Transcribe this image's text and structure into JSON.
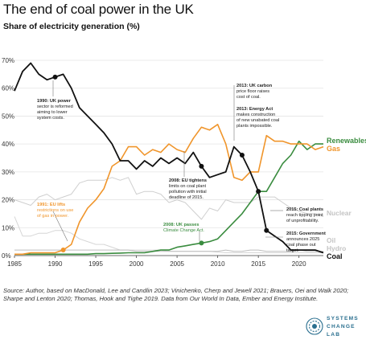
{
  "title": "The end of coal power in the UK",
  "subtitle": "Share of electricity generation (%)",
  "source": "Source: Author, based on MacDonald, Lee and Candlin 2023; Vinichenko, Cherp and Jewell 2021; Brauers, Oei and Walk 2020; Sharpe and Lenton 2020; Thomas, Hook and Tighe 2019. Data from Our World In Data, Ember and Energy Institute.",
  "logo": {
    "line1": "SYSTEMS",
    "line2": "CHANGE",
    "line3": "LAB",
    "color": "#2a6f8f"
  },
  "colors": {
    "coal": "#111111",
    "gas": "#f0952b",
    "renewables": "#3a8c3f",
    "nuclear": "#cfcfcf",
    "oil": "#d6d6d6",
    "hydro": "#bdbdbd"
  },
  "chart_data": {
    "type": "line",
    "xlim": [
      1985,
      2023
    ],
    "ylim": [
      0,
      70
    ],
    "xticks": [
      "1985",
      "1990",
      "1995",
      "2000",
      "2005",
      "2010",
      "2015",
      "2020"
    ],
    "yticks": [
      "0%",
      "10%",
      "20%",
      "30%",
      "40%",
      "50%",
      "60%",
      "70%"
    ],
    "x": [
      1985,
      1986,
      1987,
      1988,
      1989,
      1990,
      1991,
      1992,
      1993,
      1994,
      1995,
      1996,
      1997,
      1998,
      1999,
      2000,
      2001,
      2002,
      2003,
      2004,
      2005,
      2006,
      2007,
      2008,
      2009,
      2010,
      2011,
      2012,
      2013,
      2014,
      2015,
      2016,
      2017,
      2018,
      2019,
      2020,
      2021,
      2022,
      2023
    ],
    "series": [
      {
        "name": "Coal",
        "color": "#111111",
        "values": [
          59,
          66,
          69,
          65,
          63,
          64,
          65,
          60,
          53,
          50,
          47,
          44,
          40,
          34,
          34,
          31,
          34,
          32,
          35,
          33,
          35,
          33,
          37,
          32,
          28,
          29,
          30,
          39,
          36,
          30,
          23,
          9,
          7,
          5,
          2,
          2,
          2,
          2,
          1
        ]
      },
      {
        "name": "Gas",
        "color": "#f0952b",
        "values": [
          0.5,
          0.5,
          1,
          1,
          1,
          1,
          2,
          4,
          12,
          17,
          20,
          24,
          32,
          34,
          39,
          39,
          36,
          38,
          37,
          40,
          38,
          37,
          42,
          46,
          45,
          47,
          40,
          28,
          27,
          30,
          30,
          43,
          41,
          41,
          40,
          40,
          40,
          38,
          39
        ]
      },
      {
        "name": "Renewables",
        "color": "#3a8c3f",
        "values": [
          0.5,
          0.5,
          0.5,
          0.5,
          0.5,
          0.5,
          0.5,
          0.5,
          0.5,
          0.5,
          0.7,
          0.7,
          0.8,
          0.9,
          1,
          1,
          1,
          1.5,
          2,
          2,
          3,
          3.5,
          4,
          4.5,
          5,
          6,
          9,
          12,
          15,
          19,
          23,
          23,
          28,
          33,
          36,
          41,
          38,
          40,
          40
        ]
      },
      {
        "name": "Nuclear",
        "color": "#cfcfcf",
        "values": [
          20,
          19,
          18,
          21,
          22,
          20,
          21,
          22,
          26,
          27,
          27,
          27,
          28,
          27,
          28,
          22,
          23,
          23,
          22,
          19,
          20,
          19,
          16,
          13,
          17,
          16,
          20,
          19,
          19,
          19,
          21,
          21,
          21,
          19,
          17,
          16,
          15,
          15,
          14
        ]
      },
      {
        "name": "Oil",
        "color": "#d6d6d6",
        "values": [
          14,
          7,
          7,
          8,
          8,
          9,
          9,
          8,
          6,
          5,
          4,
          4,
          3,
          2,
          2,
          2,
          2,
          2,
          2,
          1.5,
          1.5,
          1.5,
          1.5,
          1.5,
          1.5,
          1.2,
          1,
          1,
          1,
          1,
          1,
          1,
          1,
          1,
          1,
          1,
          1,
          1,
          1
        ]
      },
      {
        "name": "Hydro",
        "color": "#bdbdbd",
        "values": [
          2,
          2,
          2,
          2,
          2,
          2,
          2,
          2,
          2,
          2,
          2,
          2,
          2,
          2,
          2,
          1.5,
          1.5,
          1.5,
          1.5,
          1.5,
          1.5,
          1.5,
          1.5,
          1.5,
          1.5,
          1.5,
          2,
          1.5,
          1.5,
          2,
          2,
          1.5,
          1.5,
          1.5,
          1.5,
          2,
          1.5,
          1.5,
          1.5
        ]
      }
    ],
    "events": [
      {
        "year": 1990,
        "value": 64,
        "color": "#111111",
        "lines": [
          "1990: UK power",
          "sector is reformed",
          "aiming to lower",
          "system costs."
        ]
      },
      {
        "year": 1991,
        "value": 2,
        "color": "#f0952b",
        "lines": [
          "1991: EU lifts",
          "restrictions on use",
          "of gas in power."
        ]
      },
      {
        "year": 2008,
        "value": 32,
        "color": "#111111",
        "lines": [
          "2008: EU tightens",
          "limits on coal plant",
          "pollution with initial",
          "deadline of 2015."
        ]
      },
      {
        "year": 2008,
        "value": 4.5,
        "color": "#3a8c3f",
        "lines": [
          "2008: UK passes",
          "Climate Change Act."
        ]
      },
      {
        "year": 2013,
        "value": 36,
        "color": "#111111",
        "lines": [
          "2013: UK carbon",
          "price floor raises",
          "cost of coal."
        ]
      },
      {
        "year": 2013,
        "value": 36,
        "color": "#111111",
        "lines": [
          "2013: Energy Act",
          "makes construction",
          "of new unabated coal",
          "plants impossible."
        ]
      },
      {
        "year": 2015,
        "value": 23,
        "color": "#111111",
        "lines": [
          "2015: Coal plants",
          "reach tipping point",
          "of unprofitability."
        ]
      },
      {
        "year": 2016,
        "value": 9,
        "color": "#111111",
        "lines": [
          "2015: Government",
          "announces 2025",
          "coal phase out",
          "target."
        ]
      }
    ],
    "series_labels": [
      {
        "name": "Renewables",
        "text": "Renewables",
        "color": "#3a8c3f"
      },
      {
        "name": "Gas",
        "text": "Gas",
        "color": "#f0952b"
      },
      {
        "name": "Nuclear",
        "text": "Nuclear",
        "color": "#c4c4c4"
      },
      {
        "name": "Oil",
        "text": "Oil",
        "color": "#c4c4c4"
      },
      {
        "name": "Hydro",
        "text": "Hydro",
        "color": "#c4c4c4"
      },
      {
        "name": "Coal",
        "text": "Coal",
        "color": "#111111"
      }
    ]
  }
}
